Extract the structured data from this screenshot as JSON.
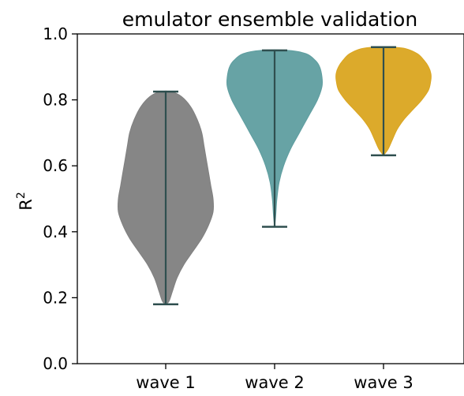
{
  "chart_data": {
    "type": "violin",
    "title": "emulator ensemble validation",
    "xlabel": "",
    "ylabel": "R",
    "ylabel_superscript": "2",
    "ylim": [
      0.0,
      1.0
    ],
    "yticks": [
      "0.0",
      "0.2",
      "0.4",
      "0.6",
      "0.8",
      "1.0"
    ],
    "grid": false,
    "categories": [
      "wave 1",
      "wave 2",
      "wave 3"
    ],
    "series": [
      {
        "category": "wave 1",
        "color": "#808080",
        "min": 0.18,
        "max": 0.825,
        "density_shape": [
          [
            0.18,
            0.0
          ],
          [
            0.19,
            0.03
          ],
          [
            0.22,
            0.06
          ],
          [
            0.26,
            0.1
          ],
          [
            0.3,
            0.16
          ],
          [
            0.34,
            0.24
          ],
          [
            0.38,
            0.32
          ],
          [
            0.42,
            0.38
          ],
          [
            0.46,
            0.42
          ],
          [
            0.5,
            0.42
          ],
          [
            0.54,
            0.4
          ],
          [
            0.58,
            0.38
          ],
          [
            0.62,
            0.36
          ],
          [
            0.66,
            0.34
          ],
          [
            0.7,
            0.32
          ],
          [
            0.74,
            0.28
          ],
          [
            0.78,
            0.22
          ],
          [
            0.81,
            0.14
          ],
          [
            0.825,
            0.05
          ]
        ]
      },
      {
        "category": "wave 2",
        "color": "#5f9ea0",
        "min": 0.415,
        "max": 0.95,
        "density_shape": [
          [
            0.415,
            0.0
          ],
          [
            0.45,
            0.01
          ],
          [
            0.5,
            0.02
          ],
          [
            0.55,
            0.04
          ],
          [
            0.6,
            0.08
          ],
          [
            0.65,
            0.14
          ],
          [
            0.7,
            0.22
          ],
          [
            0.75,
            0.3
          ],
          [
            0.8,
            0.38
          ],
          [
            0.84,
            0.42
          ],
          [
            0.87,
            0.42
          ],
          [
            0.9,
            0.4
          ],
          [
            0.92,
            0.36
          ],
          [
            0.94,
            0.28
          ],
          [
            0.95,
            0.12
          ]
        ]
      },
      {
        "category": "wave 3",
        "color": "#daa520",
        "min": 0.632,
        "max": 0.96,
        "density_shape": [
          [
            0.632,
            0.0
          ],
          [
            0.65,
            0.04
          ],
          [
            0.68,
            0.08
          ],
          [
            0.71,
            0.12
          ],
          [
            0.74,
            0.18
          ],
          [
            0.77,
            0.26
          ],
          [
            0.8,
            0.34
          ],
          [
            0.83,
            0.4
          ],
          [
            0.86,
            0.42
          ],
          [
            0.88,
            0.42
          ],
          [
            0.9,
            0.4
          ],
          [
            0.92,
            0.36
          ],
          [
            0.94,
            0.3
          ],
          [
            0.955,
            0.2
          ],
          [
            0.96,
            0.08
          ]
        ]
      }
    ]
  }
}
